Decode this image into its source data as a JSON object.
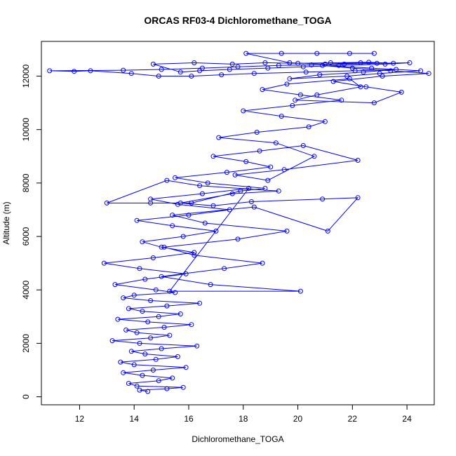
{
  "chart_data": {
    "type": "line",
    "title": "ORCAS RF03-4 Dichloromethane_TOGA",
    "xlabel": "Dichloromethane_TOGA",
    "ylabel": "Altitude (m)",
    "xlim": [
      10.6,
      25.0
    ],
    "ylim": [
      -300,
      13300
    ],
    "x_ticks": [
      12,
      14,
      16,
      18,
      20,
      22,
      24
    ],
    "y_ticks": [
      0,
      2000,
      4000,
      6000,
      8000,
      10000,
      12000
    ],
    "grid": false,
    "legend": "none",
    "marker": "open-circle",
    "series_color": "#0000ff",
    "series": [
      {
        "x": [
          14.5,
          14.2,
          15.2,
          15.8,
          14.1,
          13.8,
          14.9,
          15.4,
          14.3,
          13.6,
          14.7,
          15.9,
          14.0,
          13.5,
          14.8,
          15.6,
          14.4,
          13.9,
          15.0,
          16.3,
          14.2,
          13.2,
          14.6,
          15.3,
          14.1,
          13.7,
          15.1,
          16.1,
          14.5,
          13.4,
          14.9,
          15.7,
          14.3,
          13.8,
          15.2,
          16.4,
          14.6,
          13.6,
          14.0,
          15.5,
          14.8,
          13.3,
          14.4,
          15.9,
          14.2,
          12.9,
          14.7,
          16.2,
          15.0,
          14.3,
          15.8,
          17.0,
          15.4,
          14.1,
          16.0,
          17.5,
          15.6,
          14.6,
          16.5,
          18.2,
          15.3,
          20.1,
          16.8,
          15.0,
          17.3,
          18.7,
          16.2,
          15.1,
          17.8,
          19.6,
          16.6,
          15.4,
          18.4,
          21.1,
          22.2,
          20.9,
          18.3,
          16.9,
          15.7,
          17.6,
          19.3,
          16.4,
          15.2,
          13.0,
          14.6,
          16.1,
          17.9,
          18.8,
          16.7,
          15.5,
          17.4,
          19.0,
          18.1,
          16.9,
          18.6,
          20.2,
          22.2,
          19.5,
          17.7,
          18.9,
          20.6,
          19.2,
          17.1,
          18.5,
          20.4,
          21.0,
          19.4,
          18.0,
          19.8,
          21.6,
          20.1,
          18.7,
          19.6,
          21.9,
          22.3,
          20.7,
          19.9,
          22.8,
          23.8,
          22.5,
          21.3,
          23.1,
          24.8,
          23.4,
          22.0,
          20.9,
          22.7,
          24.5,
          23.0,
          21.8,
          19.7,
          20.8,
          22.4,
          23.6,
          22.1,
          20.3,
          18.4,
          17.2,
          16.1,
          14.9,
          13.9,
          12.4,
          11.8,
          10.9,
          13.6,
          15.0,
          16.5,
          17.8,
          19.3,
          20.5,
          21.7,
          22.9,
          24.1,
          23.2,
          21.5,
          20.2,
          18.9,
          17.5,
          16.4,
          15.7,
          14.7,
          16.2,
          17.6,
          18.8,
          20.0,
          21.2,
          22.6,
          23.5,
          22.3,
          21.0,
          19.7,
          18.1,
          19.4,
          20.7,
          21.9,
          22.8
        ],
        "y": [
          200,
          250,
          300,
          350,
          400,
          500,
          600,
          700,
          800,
          900,
          1000,
          1100,
          1200,
          1300,
          1400,
          1500,
          1600,
          1700,
          1800,
          1900,
          2000,
          2100,
          2200,
          2300,
          2400,
          2500,
          2600,
          2700,
          2800,
          2900,
          3000,
          3100,
          3200,
          3300,
          3400,
          3500,
          3600,
          3700,
          3800,
          3900,
          4000,
          4200,
          4400,
          4600,
          4800,
          5000,
          5200,
          5400,
          5600,
          5800,
          6000,
          6200,
          6400,
          6600,
          6800,
          7000,
          7200,
          7400,
          7600,
          7800,
          3950,
          3950,
          4200,
          4500,
          4800,
          5000,
          5300,
          5600,
          5900,
          6200,
          6500,
          6800,
          7100,
          6200,
          7450,
          7400,
          7300,
          7150,
          7250,
          7600,
          7700,
          7900,
          8100,
          7250,
          7250,
          7250,
          7700,
          7800,
          8000,
          8200,
          8400,
          8600,
          8800,
          9000,
          9200,
          9400,
          8850,
          8500,
          8300,
          8100,
          9000,
          9500,
          9700,
          9900,
          10100,
          10300,
          10500,
          10700,
          10900,
          11100,
          11300,
          11500,
          11700,
          11900,
          11600,
          11300,
          11100,
          11000,
          11400,
          11600,
          11800,
          12000,
          12100,
          12200,
          12300,
          12400,
          12300,
          12200,
          12100,
          12000,
          11900,
          12050,
          12150,
          12250,
          12200,
          12150,
          12100,
          12050,
          12000,
          12000,
          12100,
          12200,
          12180,
          12200,
          12220,
          12250,
          12300,
          12350,
          12400,
          12420,
          12450,
          12480,
          12500,
          12450,
          12400,
          12350,
          12300,
          12250,
          12200,
          12150,
          12450,
          12500,
          12450,
          12500,
          12480,
          12500,
          12520,
          12480,
          12500,
          12450,
          12500,
          12850,
          12850,
          12850,
          12850,
          12850
        ]
      }
    ]
  }
}
